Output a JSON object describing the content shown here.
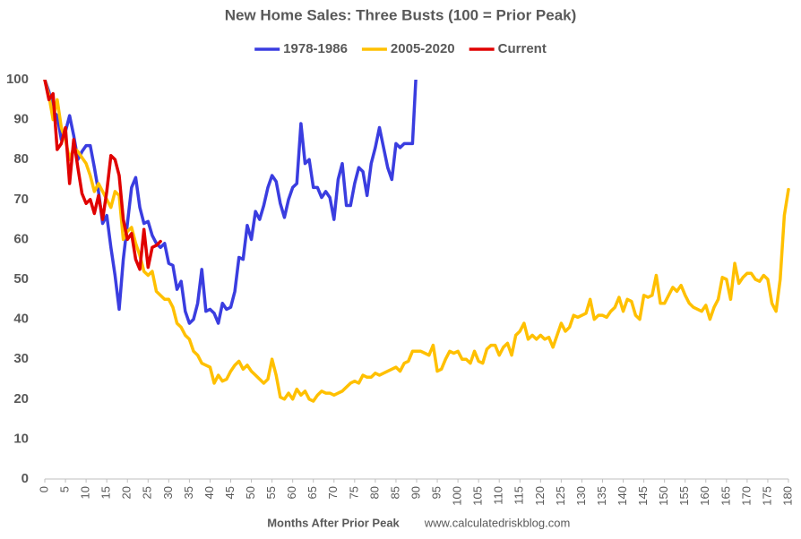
{
  "chart_data": {
    "type": "line",
    "title": "New Home Sales: Three Busts (100 = Prior Peak)",
    "x_label": "Months After Prior Peak",
    "annotation": "www.calculatedriskblog.com",
    "xlim": [
      0,
      180
    ],
    "xticks": [
      0,
      5,
      10,
      15,
      20,
      25,
      30,
      35,
      40,
      45,
      50,
      55,
      60,
      65,
      70,
      75,
      80,
      85,
      90,
      95,
      100,
      105,
      110,
      115,
      120,
      125,
      130,
      135,
      140,
      145,
      150,
      155,
      160,
      165,
      170,
      175,
      180
    ],
    "ylim": [
      0,
      100
    ],
    "yticks": [
      0,
      10,
      20,
      30,
      40,
      50,
      60,
      70,
      80,
      90,
      100
    ],
    "grid": false,
    "legend": "top",
    "series": [
      {
        "name": "1978-1986",
        "color": "#3a3de0",
        "values": [
          100,
          97,
          92,
          91,
          85,
          87,
          91,
          86,
          80,
          82,
          83.5,
          83.5,
          78,
          72,
          64,
          66,
          58,
          51,
          42.5,
          55,
          64,
          73,
          75.5,
          68,
          64,
          64.5,
          61,
          59,
          58,
          59,
          54,
          53.5,
          47.5,
          49.5,
          42,
          39,
          40,
          44,
          52.5,
          42,
          42.5,
          41.5,
          39,
          44,
          42.5,
          43,
          47,
          55.5,
          55,
          63.5,
          60,
          67,
          65,
          68.5,
          73,
          76,
          74.5,
          69,
          65.5,
          70,
          73,
          74,
          89,
          79,
          80,
          73,
          73,
          70.5,
          72,
          70.5,
          65,
          75,
          79,
          68.5,
          68.5,
          74,
          78,
          77,
          71,
          79,
          83,
          88,
          83,
          78,
          75,
          84,
          83,
          84,
          84,
          84,
          104
        ]
      },
      {
        "name": "2005-2020",
        "color": "#ffc000",
        "values": [
          100,
          96,
          90,
          95,
          88,
          85,
          80,
          83,
          82,
          80.5,
          79,
          76,
          72,
          74,
          72,
          70,
          68,
          72,
          71,
          60,
          62,
          63,
          59,
          56,
          52,
          51,
          52,
          47,
          46,
          45,
          45,
          43,
          39,
          38,
          36,
          35,
          32,
          31,
          29,
          28.5,
          28,
          24,
          26,
          24.5,
          25,
          27,
          28.5,
          29.5,
          27.5,
          28.5,
          27,
          26,
          25,
          24,
          25,
          30,
          26,
          20.5,
          20,
          21.5,
          20,
          22.5,
          21,
          22,
          20,
          19.5,
          21,
          22,
          21.5,
          21.5,
          21,
          21.5,
          22,
          23,
          24,
          24.5,
          24,
          26,
          25.5,
          25.5,
          26.5,
          26,
          26.5,
          27,
          27.5,
          28,
          27,
          29,
          29.5,
          32,
          32,
          32,
          31.5,
          31,
          33.5,
          27,
          27.5,
          30,
          32,
          31.5,
          32,
          30,
          30,
          29,
          32,
          29.5,
          29,
          32.5,
          33.5,
          33.5,
          31,
          33,
          34,
          31,
          36,
          37,
          39,
          35,
          36,
          35,
          36,
          35,
          35.5,
          33,
          36,
          39,
          37,
          38,
          41,
          40.5,
          41,
          41.5,
          45,
          40,
          41,
          41,
          40.5,
          42,
          43,
          45.5,
          42,
          45,
          44.5,
          41,
          40,
          46,
          45.5,
          46,
          51,
          44,
          44,
          46,
          48,
          47,
          48.5,
          46,
          44,
          43,
          42.5,
          42,
          43.5,
          40,
          43,
          45,
          50.5,
          50,
          45,
          54,
          49,
          50.5,
          51.5,
          51.5,
          50,
          49.5,
          51,
          50,
          44,
          42,
          50,
          66,
          72.5
        ]
      },
      {
        "name": "Current",
        "color": "#e00000",
        "values": [
          100,
          95,
          96.5,
          82.5,
          84,
          88,
          74,
          85,
          78,
          71.5,
          69,
          70,
          66.5,
          71,
          65,
          72,
          81,
          80,
          76,
          65,
          60,
          61.5,
          55,
          52.5,
          62.5,
          53,
          58,
          58.5,
          59.5
        ]
      }
    ]
  }
}
